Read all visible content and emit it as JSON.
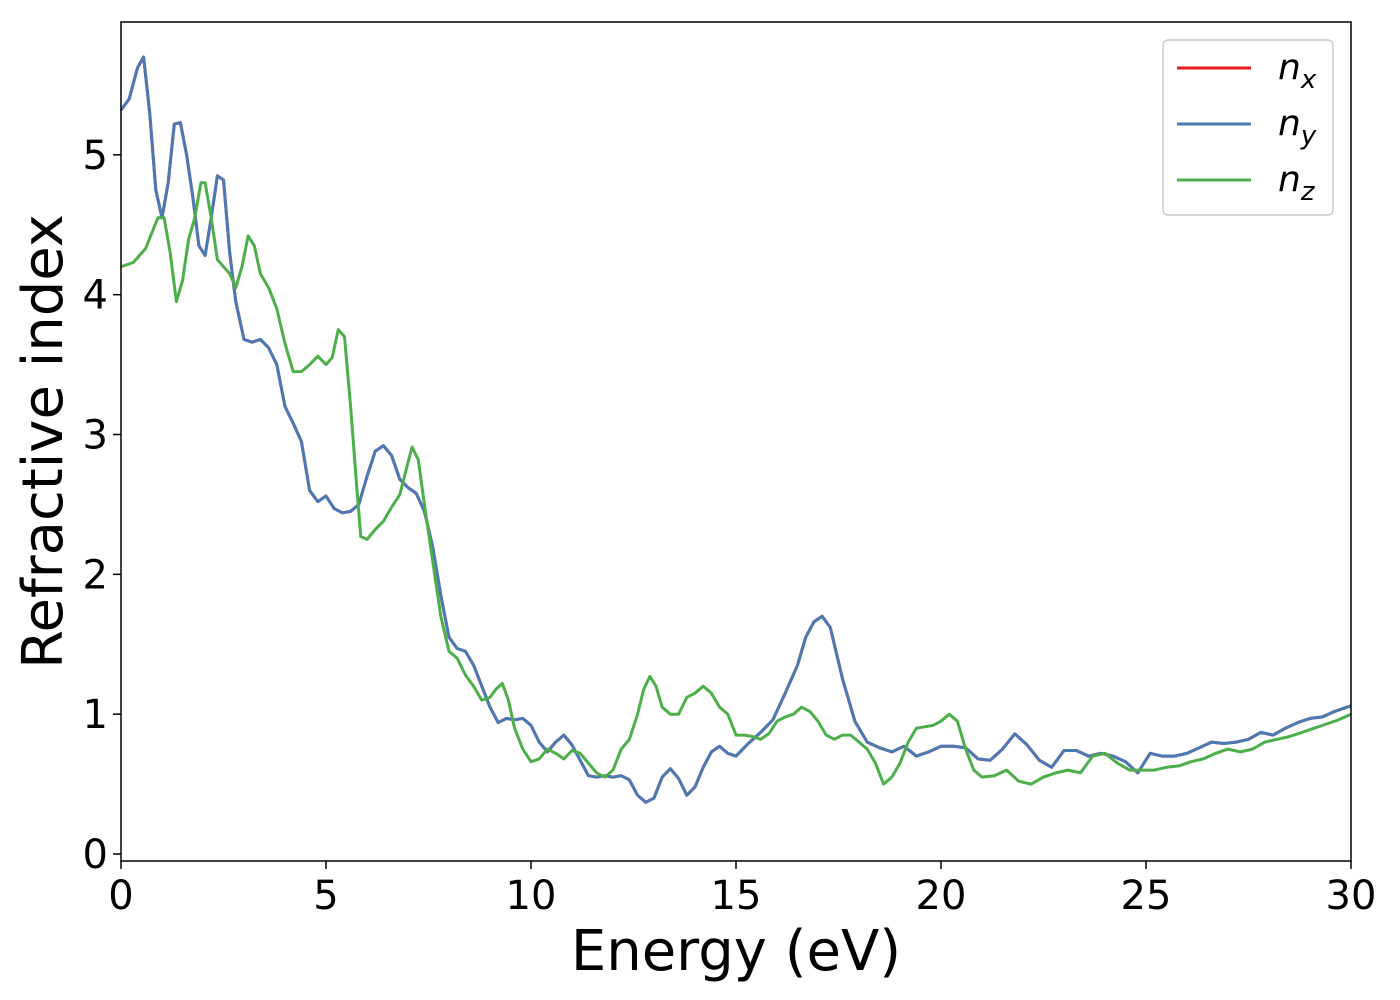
{
  "chart_data": {
    "type": "line",
    "xlabel": "Energy (eV)",
    "ylabel": "Refractive index",
    "xlim": [
      0,
      30
    ],
    "ylim": [
      -0.05,
      5.95
    ],
    "xticks": [
      0,
      5,
      10,
      15,
      20,
      25,
      30
    ],
    "yticks": [
      0,
      1,
      2,
      3,
      4,
      5
    ],
    "grid": false,
    "legend_position": "top-right",
    "series": [
      {
        "name": "n_x",
        "label_main": "n",
        "label_sub": "x",
        "color": "#e41a1c",
        "x": [
          0,
          0.2,
          0.4,
          0.55,
          0.7,
          0.85,
          1.0,
          1.15,
          1.3,
          1.45,
          1.6,
          1.75,
          1.9,
          2.05,
          2.2,
          2.35,
          2.5,
          2.65,
          2.8,
          3.0,
          3.2,
          3.4,
          3.6,
          3.8,
          4.0,
          4.2,
          4.4,
          4.6,
          4.8,
          5.0,
          5.2,
          5.4,
          5.6,
          5.8,
          6.0,
          6.2,
          6.4,
          6.6,
          6.8,
          7.0,
          7.2,
          7.4,
          7.6,
          7.8,
          8.0,
          8.2,
          8.4,
          8.6,
          8.8,
          9.0,
          9.2,
          9.4,
          9.6,
          9.8,
          10.0,
          10.2,
          10.4,
          10.6,
          10.8,
          11.0,
          11.2,
          11.4,
          11.6,
          11.8,
          12.0,
          12.2,
          12.4,
          12.6,
          12.8,
          13.0,
          13.2,
          13.4,
          13.6,
          13.8,
          14.0,
          14.2,
          14.4,
          14.6,
          14.8,
          15.0,
          15.3,
          15.6,
          15.9,
          16.2,
          16.5,
          16.7,
          16.9,
          17.1,
          17.3,
          17.6,
          17.9,
          18.2,
          18.5,
          18.8,
          19.1,
          19.4,
          19.7,
          20.0,
          20.3,
          20.6,
          20.9,
          21.2,
          21.5,
          21.8,
          22.1,
          22.4,
          22.7,
          23.0,
          23.3,
          23.6,
          23.9,
          24.2,
          24.5,
          24.8,
          25.1,
          25.4,
          25.7,
          26.0,
          26.3,
          26.6,
          26.9,
          27.2,
          27.5,
          27.8,
          28.1,
          28.4,
          28.7,
          29.0,
          29.3,
          29.6,
          30.0
        ],
        "y": [
          5.32,
          5.4,
          5.62,
          5.7,
          5.3,
          4.75,
          4.55,
          4.8,
          5.22,
          5.23,
          5.0,
          4.7,
          4.35,
          4.28,
          4.55,
          4.85,
          4.82,
          4.3,
          3.95,
          3.68,
          3.66,
          3.68,
          3.62,
          3.5,
          3.2,
          3.08,
          2.95,
          2.6,
          2.52,
          2.56,
          2.47,
          2.44,
          2.45,
          2.5,
          2.7,
          2.88,
          2.92,
          2.85,
          2.68,
          2.62,
          2.58,
          2.45,
          2.2,
          1.85,
          1.55,
          1.47,
          1.45,
          1.35,
          1.2,
          1.05,
          0.94,
          0.97,
          0.96,
          0.97,
          0.92,
          0.8,
          0.73,
          0.8,
          0.85,
          0.78,
          0.67,
          0.56,
          0.55,
          0.56,
          0.55,
          0.56,
          0.53,
          0.42,
          0.37,
          0.4,
          0.55,
          0.61,
          0.54,
          0.42,
          0.48,
          0.62,
          0.73,
          0.77,
          0.72,
          0.7,
          0.79,
          0.87,
          0.96,
          1.15,
          1.35,
          1.55,
          1.66,
          1.7,
          1.62,
          1.25,
          0.95,
          0.8,
          0.76,
          0.73,
          0.77,
          0.7,
          0.73,
          0.77,
          0.77,
          0.76,
          0.68,
          0.67,
          0.75,
          0.86,
          0.78,
          0.67,
          0.62,
          0.74,
          0.74,
          0.7,
          0.72,
          0.7,
          0.66,
          0.58,
          0.72,
          0.7,
          0.7,
          0.72,
          0.76,
          0.8,
          0.79,
          0.8,
          0.82,
          0.87,
          0.85,
          0.9,
          0.94,
          0.97,
          0.98,
          1.02,
          1.06
        ]
      },
      {
        "name": "n_y",
        "label_main": "n",
        "label_sub": "y",
        "color": "#4a7ab4",
        "x": [
          0,
          0.2,
          0.4,
          0.55,
          0.7,
          0.85,
          1.0,
          1.15,
          1.3,
          1.45,
          1.6,
          1.75,
          1.9,
          2.05,
          2.2,
          2.35,
          2.5,
          2.65,
          2.8,
          3.0,
          3.2,
          3.4,
          3.6,
          3.8,
          4.0,
          4.2,
          4.4,
          4.6,
          4.8,
          5.0,
          5.2,
          5.4,
          5.6,
          5.8,
          6.0,
          6.2,
          6.4,
          6.6,
          6.8,
          7.0,
          7.2,
          7.4,
          7.6,
          7.8,
          8.0,
          8.2,
          8.4,
          8.6,
          8.8,
          9.0,
          9.2,
          9.4,
          9.6,
          9.8,
          10.0,
          10.2,
          10.4,
          10.6,
          10.8,
          11.0,
          11.2,
          11.4,
          11.6,
          11.8,
          12.0,
          12.2,
          12.4,
          12.6,
          12.8,
          13.0,
          13.2,
          13.4,
          13.6,
          13.8,
          14.0,
          14.2,
          14.4,
          14.6,
          14.8,
          15.0,
          15.3,
          15.6,
          15.9,
          16.2,
          16.5,
          16.7,
          16.9,
          17.1,
          17.3,
          17.6,
          17.9,
          18.2,
          18.5,
          18.8,
          19.1,
          19.4,
          19.7,
          20.0,
          20.3,
          20.6,
          20.9,
          21.2,
          21.5,
          21.8,
          22.1,
          22.4,
          22.7,
          23.0,
          23.3,
          23.6,
          23.9,
          24.2,
          24.5,
          24.8,
          25.1,
          25.4,
          25.7,
          26.0,
          26.3,
          26.6,
          26.9,
          27.2,
          27.5,
          27.8,
          28.1,
          28.4,
          28.7,
          29.0,
          29.3,
          29.6,
          30.0
        ],
        "y": [
          5.32,
          5.4,
          5.62,
          5.7,
          5.3,
          4.75,
          4.55,
          4.8,
          5.22,
          5.23,
          5.0,
          4.7,
          4.35,
          4.28,
          4.55,
          4.85,
          4.82,
          4.3,
          3.95,
          3.68,
          3.66,
          3.68,
          3.62,
          3.5,
          3.2,
          3.08,
          2.95,
          2.6,
          2.52,
          2.56,
          2.47,
          2.44,
          2.45,
          2.5,
          2.7,
          2.88,
          2.92,
          2.85,
          2.68,
          2.62,
          2.58,
          2.45,
          2.2,
          1.85,
          1.55,
          1.47,
          1.45,
          1.35,
          1.2,
          1.05,
          0.94,
          0.97,
          0.96,
          0.97,
          0.92,
          0.8,
          0.73,
          0.8,
          0.85,
          0.78,
          0.67,
          0.56,
          0.55,
          0.56,
          0.55,
          0.56,
          0.53,
          0.42,
          0.37,
          0.4,
          0.55,
          0.61,
          0.54,
          0.42,
          0.48,
          0.62,
          0.73,
          0.77,
          0.72,
          0.7,
          0.79,
          0.87,
          0.96,
          1.15,
          1.35,
          1.55,
          1.66,
          1.7,
          1.62,
          1.25,
          0.95,
          0.8,
          0.76,
          0.73,
          0.77,
          0.7,
          0.73,
          0.77,
          0.77,
          0.76,
          0.68,
          0.67,
          0.75,
          0.86,
          0.78,
          0.67,
          0.62,
          0.74,
          0.74,
          0.7,
          0.72,
          0.7,
          0.66,
          0.58,
          0.72,
          0.7,
          0.7,
          0.72,
          0.76,
          0.8,
          0.79,
          0.8,
          0.82,
          0.87,
          0.85,
          0.9,
          0.94,
          0.97,
          0.98,
          1.02,
          1.06
        ]
      },
      {
        "name": "n_z",
        "label_main": "n",
        "label_sub": "z",
        "color": "#4daf4a",
        "x": [
          0,
          0.3,
          0.6,
          0.9,
          1.05,
          1.2,
          1.35,
          1.5,
          1.65,
          1.8,
          1.95,
          2.05,
          2.2,
          2.35,
          2.5,
          2.65,
          2.8,
          2.95,
          3.1,
          3.25,
          3.4,
          3.6,
          3.8,
          4.0,
          4.2,
          4.4,
          4.6,
          4.8,
          5.0,
          5.15,
          5.3,
          5.45,
          5.6,
          5.75,
          5.85,
          6.0,
          6.2,
          6.4,
          6.6,
          6.8,
          7.0,
          7.1,
          7.25,
          7.4,
          7.6,
          7.8,
          8.0,
          8.2,
          8.4,
          8.6,
          8.8,
          9.0,
          9.15,
          9.3,
          9.45,
          9.6,
          9.8,
          10.0,
          10.2,
          10.4,
          10.6,
          10.8,
          11.0,
          11.2,
          11.4,
          11.6,
          11.8,
          12.0,
          12.2,
          12.4,
          12.6,
          12.75,
          12.9,
          13.05,
          13.2,
          13.4,
          13.6,
          13.8,
          14.0,
          14.2,
          14.4,
          14.6,
          14.8,
          15.0,
          15.2,
          15.4,
          15.6,
          15.8,
          16.0,
          16.2,
          16.4,
          16.6,
          16.8,
          17.0,
          17.2,
          17.4,
          17.6,
          17.8,
          18.0,
          18.2,
          18.4,
          18.6,
          18.8,
          19.0,
          19.2,
          19.4,
          19.6,
          19.8,
          20.0,
          20.2,
          20.4,
          20.6,
          20.8,
          21.0,
          21.3,
          21.6,
          21.9,
          22.2,
          22.5,
          22.8,
          23.1,
          23.4,
          23.7,
          24.0,
          24.3,
          24.6,
          24.9,
          25.2,
          25.5,
          25.8,
          26.1,
          26.4,
          26.7,
          27.0,
          27.3,
          27.6,
          27.9,
          28.2,
          28.5,
          28.8,
          29.1,
          29.4,
          29.7,
          30.0
        ],
        "y": [
          4.2,
          4.23,
          4.33,
          4.55,
          4.55,
          4.3,
          3.95,
          4.1,
          4.4,
          4.55,
          4.8,
          4.8,
          4.55,
          4.25,
          4.2,
          4.15,
          4.05,
          4.2,
          4.42,
          4.35,
          4.15,
          4.05,
          3.9,
          3.65,
          3.45,
          3.45,
          3.5,
          3.56,
          3.5,
          3.55,
          3.75,
          3.7,
          3.2,
          2.62,
          2.27,
          2.25,
          2.32,
          2.38,
          2.48,
          2.57,
          2.8,
          2.91,
          2.82,
          2.5,
          2.1,
          1.7,
          1.45,
          1.4,
          1.28,
          1.2,
          1.1,
          1.12,
          1.18,
          1.22,
          1.1,
          0.9,
          0.75,
          0.66,
          0.68,
          0.75,
          0.72,
          0.68,
          0.74,
          0.72,
          0.65,
          0.58,
          0.55,
          0.6,
          0.75,
          0.82,
          1.0,
          1.18,
          1.27,
          1.2,
          1.05,
          1.0,
          1.0,
          1.12,
          1.15,
          1.2,
          1.15,
          1.05,
          1.0,
          0.85,
          0.85,
          0.84,
          0.82,
          0.86,
          0.95,
          0.98,
          1.0,
          1.05,
          1.02,
          0.95,
          0.85,
          0.82,
          0.85,
          0.85,
          0.8,
          0.75,
          0.65,
          0.5,
          0.55,
          0.65,
          0.8,
          0.9,
          0.91,
          0.92,
          0.95,
          1.0,
          0.95,
          0.75,
          0.6,
          0.55,
          0.56,
          0.6,
          0.52,
          0.5,
          0.55,
          0.58,
          0.6,
          0.58,
          0.7,
          0.72,
          0.65,
          0.6,
          0.6,
          0.6,
          0.62,
          0.63,
          0.66,
          0.68,
          0.72,
          0.75,
          0.73,
          0.75,
          0.8,
          0.82,
          0.84,
          0.87,
          0.9,
          0.93,
          0.96,
          1.0
        ]
      }
    ]
  }
}
